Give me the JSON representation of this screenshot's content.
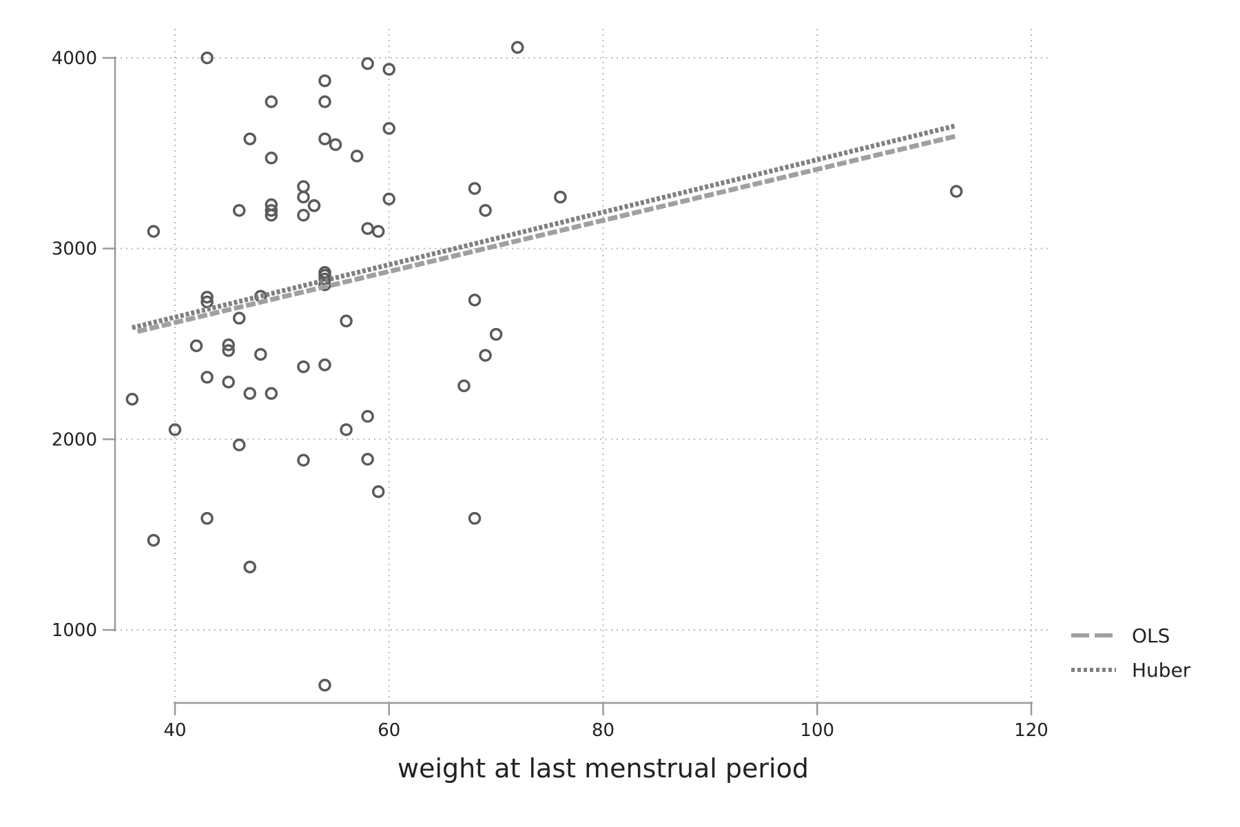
{
  "chart_data": {
    "type": "scatter",
    "xlabel": "weight at last menstrual period",
    "ylabel": "",
    "xlim": [
      35,
      121
    ],
    "ylim": [
      620,
      4150
    ],
    "x_ticks": [
      40,
      60,
      80,
      100,
      120
    ],
    "y_ticks": [
      1000,
      2000,
      3000,
      4000
    ],
    "grid": true,
    "legend": {
      "placement": "bottom-right",
      "entries": [
        {
          "label": "OLS",
          "style": "dashed",
          "color": "#a0a0a0"
        },
        {
          "label": "Huber",
          "style": "dotted",
          "color": "#808080"
        }
      ]
    },
    "colors": {
      "points": "#5a5a5a",
      "ols": "#a0a0a0",
      "huber": "#808080",
      "grid": "#b8b8b8",
      "axis": "#9a9a9a"
    },
    "series": [
      {
        "type": "scatter",
        "points": [
          [
            36,
            2210
          ],
          [
            38,
            3090
          ],
          [
            38,
            1470
          ],
          [
            40,
            2050
          ],
          [
            42,
            2490
          ],
          [
            43,
            4000
          ],
          [
            43,
            2745
          ],
          [
            43,
            2720
          ],
          [
            43,
            2325
          ],
          [
            43,
            1585
          ],
          [
            45,
            2495
          ],
          [
            45,
            2465
          ],
          [
            45,
            2300
          ],
          [
            46,
            3200
          ],
          [
            46,
            2635
          ],
          [
            46,
            1970
          ],
          [
            47,
            3575
          ],
          [
            47,
            2240
          ],
          [
            47,
            1330
          ],
          [
            48,
            2750
          ],
          [
            48,
            2445
          ],
          [
            49,
            3770
          ],
          [
            49,
            3475
          ],
          [
            49,
            3230
          ],
          [
            49,
            3200
          ],
          [
            49,
            3175
          ],
          [
            49,
            2240
          ],
          [
            52,
            3325
          ],
          [
            52,
            3270
          ],
          [
            52,
            3175
          ],
          [
            52,
            2380
          ],
          [
            52,
            1890
          ],
          [
            53,
            3225
          ],
          [
            53,
            3225
          ],
          [
            54,
            3880
          ],
          [
            54,
            3770
          ],
          [
            54,
            3575
          ],
          [
            54,
            2875
          ],
          [
            54,
            2860
          ],
          [
            54,
            2840
          ],
          [
            54,
            2810
          ],
          [
            54,
            2390
          ],
          [
            54,
            710
          ],
          [
            55,
            3545
          ],
          [
            56,
            2620
          ],
          [
            56,
            2050
          ],
          [
            57,
            3485
          ],
          [
            58,
            3970
          ],
          [
            58,
            3105
          ],
          [
            58,
            2120
          ],
          [
            58,
            1895
          ],
          [
            59,
            3090
          ],
          [
            59,
            1725
          ],
          [
            60,
            3940
          ],
          [
            60,
            3630
          ],
          [
            60,
            3260
          ],
          [
            67,
            2280
          ],
          [
            68,
            3315
          ],
          [
            68,
            2730
          ],
          [
            68,
            1585
          ],
          [
            69,
            3200
          ],
          [
            69,
            2440
          ],
          [
            70,
            2550
          ],
          [
            72,
            4055
          ],
          [
            76,
            3270
          ],
          [
            113,
            3300
          ]
        ]
      },
      {
        "name": "OLS",
        "type": "line",
        "style": "dashed",
        "x": [
          36.5,
          113
        ],
        "y": [
          2565,
          3590
        ]
      },
      {
        "name": "Huber",
        "type": "line",
        "style": "dotted",
        "x": [
          36,
          113
        ],
        "y": [
          2585,
          3645
        ]
      }
    ]
  }
}
